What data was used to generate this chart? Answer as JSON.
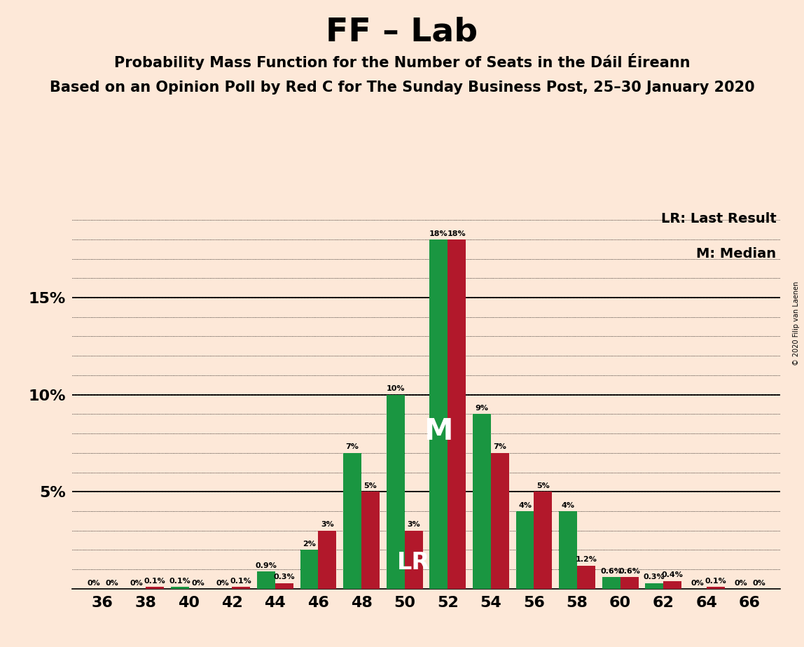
{
  "title": "FF – Lab",
  "subtitle1": "Probability Mass Function for the Number of Seats in the Dáil Éireann",
  "subtitle2": "Based on an Opinion Poll by Red C for The Sunday Business Post, 25–30 January 2020",
  "copyright": "© 2020 Filip van Laenen",
  "legend_lr": "LR: Last Result",
  "legend_m": "M: Median",
  "x_seats": [
    36,
    38,
    40,
    42,
    44,
    46,
    48,
    50,
    52,
    54,
    56,
    58,
    60,
    62,
    64,
    66
  ],
  "green_values": [
    0.0,
    0.0,
    0.1,
    0.0,
    0.9,
    2.0,
    7.0,
    10.0,
    18.0,
    9.0,
    4.0,
    4.0,
    0.6,
    0.3,
    0.0,
    0.0
  ],
  "red_values": [
    0.0,
    0.1,
    0.0,
    0.1,
    0.3,
    3.0,
    5.0,
    3.0,
    18.0,
    7.0,
    5.0,
    1.2,
    0.6,
    0.4,
    0.1,
    0.0
  ],
  "green_labels": [
    "0%",
    "0%",
    "0.1%",
    "0%",
    "0.9%",
    "2%",
    "7%",
    "10%",
    "18%",
    "9%",
    "4%",
    "4%",
    "0.6%",
    "0.3%",
    "0%",
    "0%"
  ],
  "red_labels": [
    "0%",
    "0.1%",
    "0%",
    "0.1%",
    "0.3%",
    "3%",
    "5%",
    "3%",
    "18%",
    "7%",
    "5%",
    "1.2%",
    "0.6%",
    "0.4%",
    "0.1%",
    "0%"
  ],
  "median_seat": 52,
  "lr_seat": 50,
  "green_color": "#1a9641",
  "red_color": "#b2182b",
  "background_color": "#fde8d8",
  "ytick_vals": [
    5,
    10,
    15
  ],
  "ylim": [
    0,
    20
  ],
  "bar_width": 0.85
}
